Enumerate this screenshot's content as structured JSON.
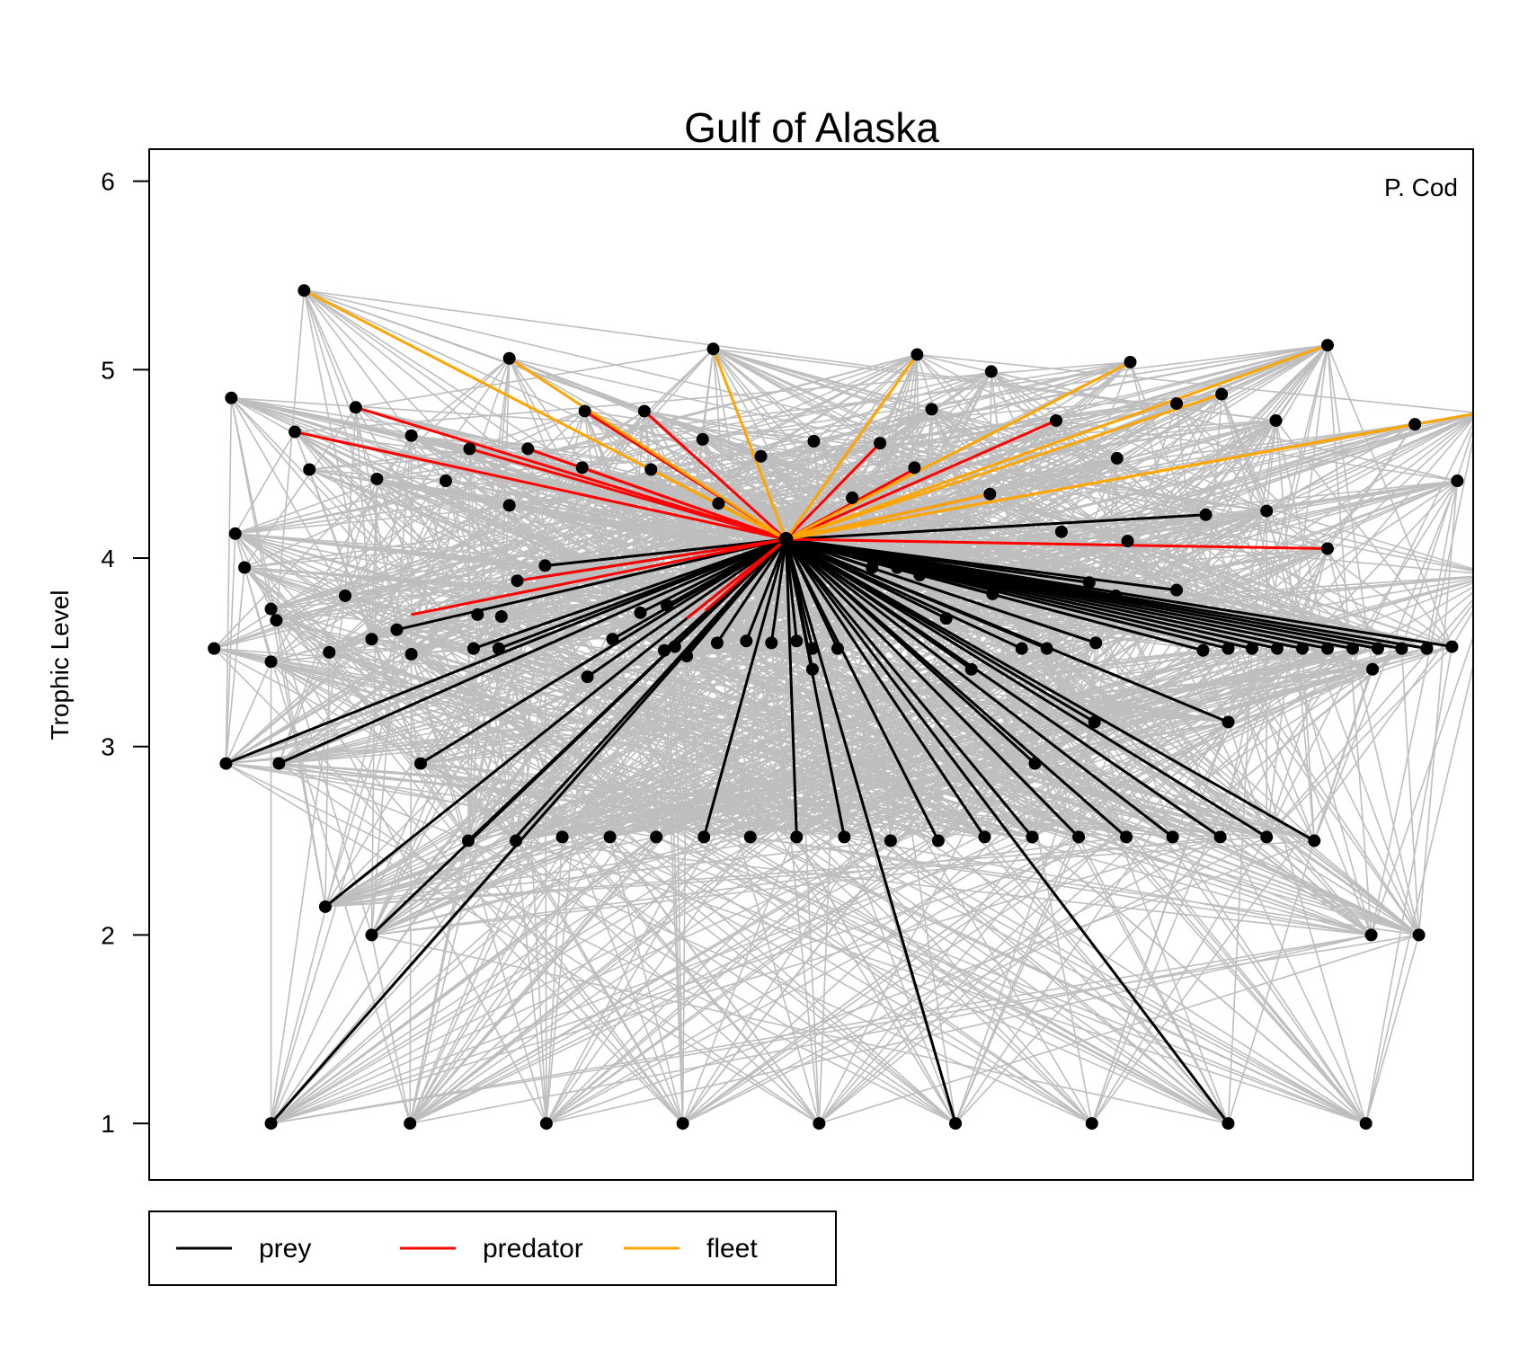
{
  "chart_data": {
    "type": "scatter",
    "title": "Gulf of Alaska",
    "ylabel": "Trophic Level",
    "xlabel": "",
    "annotation": "P. Cod",
    "ylim": [
      0.7,
      6.17
    ],
    "xlim": [
      0,
      100
    ],
    "yticks": [
      1,
      2,
      3,
      4,
      5,
      6
    ],
    "focus": {
      "name": "P. Cod",
      "x": 48.1,
      "y": 4.1
    },
    "colors": {
      "background_link": "#bebebe",
      "prey": "#000000",
      "predator": "#ff0000",
      "fleet": "#ffa500",
      "node": "#000000"
    },
    "legend": [
      {
        "label": "prey",
        "color": "#000000"
      },
      {
        "label": "predator",
        "color": "#ff0000"
      },
      {
        "label": "fleet",
        "color": "#ffa500"
      }
    ],
    "nodes": [
      [
        11.7,
        5.42
      ],
      [
        27.2,
        5.06
      ],
      [
        42.6,
        5.11
      ],
      [
        58.0,
        5.08
      ],
      [
        63.6,
        4.99
      ],
      [
        74.1,
        5.04
      ],
      [
        89.0,
        5.13
      ],
      [
        6.2,
        4.85
      ],
      [
        15.6,
        4.8
      ],
      [
        32.9,
        4.78
      ],
      [
        37.4,
        4.78
      ],
      [
        59.1,
        4.79
      ],
      [
        77.6,
        4.82
      ],
      [
        81.0,
        4.87
      ],
      [
        11.0,
        4.67
      ],
      [
        19.8,
        4.65
      ],
      [
        24.2,
        4.58
      ],
      [
        28.6,
        4.58
      ],
      [
        41.8,
        4.63
      ],
      [
        50.2,
        4.62
      ],
      [
        55.2,
        4.61
      ],
      [
        68.5,
        4.73
      ],
      [
        85.1,
        4.73
      ],
      [
        95.6,
        4.71
      ],
      [
        100.4,
        4.77
      ],
      [
        12.1,
        4.47
      ],
      [
        17.2,
        4.42
      ],
      [
        22.4,
        4.41
      ],
      [
        32.7,
        4.48
      ],
      [
        37.9,
        4.47
      ],
      [
        46.2,
        4.54
      ],
      [
        57.8,
        4.48
      ],
      [
        73.1,
        4.53
      ],
      [
        27.2,
        4.28
      ],
      [
        43.0,
        4.29
      ],
      [
        53.1,
        4.32
      ],
      [
        63.5,
        4.34
      ],
      [
        79.8,
        4.23
      ],
      [
        84.4,
        4.25
      ],
      [
        98.8,
        4.41
      ],
      [
        6.5,
        4.13
      ],
      [
        68.9,
        4.14
      ],
      [
        73.9,
        4.09
      ],
      [
        89.0,
        4.05
      ],
      [
        7.2,
        3.95
      ],
      [
        29.9,
        3.96
      ],
      [
        27.8,
        3.88
      ],
      [
        54.6,
        3.95
      ],
      [
        56.5,
        3.95
      ],
      [
        58.2,
        3.91
      ],
      [
        71.0,
        3.87
      ],
      [
        101.6,
        3.91
      ],
      [
        9.2,
        3.73
      ],
      [
        14.8,
        3.8
      ],
      [
        24.8,
        3.7
      ],
      [
        26.6,
        3.69
      ],
      [
        37.1,
        3.71
      ],
      [
        39.1,
        3.75
      ],
      [
        63.7,
        3.81
      ],
      [
        73.0,
        3.8
      ],
      [
        77.6,
        3.83
      ],
      [
        9.6,
        3.67
      ],
      [
        13.6,
        3.5
      ],
      [
        16.8,
        3.57
      ],
      [
        18.7,
        3.62
      ],
      [
        19.8,
        3.49
      ],
      [
        24.5,
        3.52
      ],
      [
        26.4,
        3.52
      ],
      [
        35.0,
        3.57
      ],
      [
        38.9,
        3.51
      ],
      [
        39.7,
        3.53
      ],
      [
        40.6,
        3.48
      ],
      [
        42.9,
        3.55
      ],
      [
        45.1,
        3.56
      ],
      [
        47.0,
        3.55
      ],
      [
        48.9,
        3.56
      ],
      [
        50.1,
        3.52
      ],
      [
        50.1,
        3.41
      ],
      [
        52.0,
        3.52
      ],
      [
        60.2,
        3.68
      ],
      [
        62.1,
        3.41
      ],
      [
        65.9,
        3.52
      ],
      [
        67.8,
        3.52
      ],
      [
        71.5,
        3.55
      ],
      [
        79.6,
        3.51
      ],
      [
        81.5,
        3.52
      ],
      [
        83.3,
        3.52
      ],
      [
        85.2,
        3.52
      ],
      [
        87.1,
        3.52
      ],
      [
        89.0,
        3.52
      ],
      [
        90.9,
        3.52
      ],
      [
        92.8,
        3.52
      ],
      [
        94.6,
        3.52
      ],
      [
        96.5,
        3.52
      ],
      [
        98.4,
        3.53
      ],
      [
        4.9,
        3.52
      ],
      [
        9.2,
        3.45
      ],
      [
        33.1,
        3.37
      ],
      [
        92.4,
        3.41
      ],
      [
        71.4,
        3.13
      ],
      [
        81.5,
        3.13
      ],
      [
        5.8,
        2.91
      ],
      [
        9.8,
        2.91
      ],
      [
        20.5,
        2.91
      ],
      [
        66.9,
        2.91
      ],
      [
        24.1,
        2.5
      ],
      [
        27.7,
        2.5
      ],
      [
        31.2,
        2.52
      ],
      [
        34.8,
        2.52
      ],
      [
        38.3,
        2.52
      ],
      [
        41.9,
        2.52
      ],
      [
        45.4,
        2.52
      ],
      [
        48.9,
        2.52
      ],
      [
        52.5,
        2.52
      ],
      [
        56.0,
        2.5
      ],
      [
        59.6,
        2.5
      ],
      [
        63.1,
        2.52
      ],
      [
        66.7,
        2.52
      ],
      [
        70.2,
        2.52
      ],
      [
        73.8,
        2.52
      ],
      [
        77.3,
        2.52
      ],
      [
        80.9,
        2.52
      ],
      [
        84.4,
        2.52
      ],
      [
        88.0,
        2.5
      ],
      [
        13.3,
        2.15
      ],
      [
        16.8,
        2.0
      ],
      [
        92.3,
        2.0
      ],
      [
        95.9,
        2.0
      ],
      [
        9.2,
        1.0
      ],
      [
        19.7,
        1.0
      ],
      [
        30.0,
        1.0
      ],
      [
        40.3,
        1.0
      ],
      [
        50.6,
        1.0
      ],
      [
        60.9,
        1.0
      ],
      [
        71.2,
        1.0
      ],
      [
        81.5,
        1.0
      ],
      [
        91.9,
        1.0
      ]
    ],
    "prey": [
      [
        30.0,
        3.96
      ],
      [
        27.8,
        3.88
      ],
      [
        18.7,
        3.62
      ],
      [
        24.5,
        3.52
      ],
      [
        26.4,
        3.52
      ],
      [
        35.0,
        3.57
      ],
      [
        37.1,
        3.71
      ],
      [
        39.1,
        3.75
      ],
      [
        38.9,
        3.51
      ],
      [
        39.7,
        3.53
      ],
      [
        40.6,
        3.48
      ],
      [
        42.9,
        3.55
      ],
      [
        45.1,
        3.56
      ],
      [
        47.0,
        3.55
      ],
      [
        48.9,
        3.56
      ],
      [
        50.1,
        3.52
      ],
      [
        50.1,
        3.41
      ],
      [
        52.0,
        3.52
      ],
      [
        54.6,
        3.95
      ],
      [
        56.5,
        3.95
      ],
      [
        58.2,
        3.91
      ],
      [
        60.2,
        3.68
      ],
      [
        62.1,
        3.41
      ],
      [
        63.7,
        3.81
      ],
      [
        65.9,
        3.52
      ],
      [
        67.8,
        3.52
      ],
      [
        71.0,
        3.87
      ],
      [
        71.5,
        3.55
      ],
      [
        73.0,
        3.8
      ],
      [
        77.6,
        3.83
      ],
      [
        79.6,
        3.51
      ],
      [
        81.5,
        3.52
      ],
      [
        83.3,
        3.52
      ],
      [
        85.2,
        3.52
      ],
      [
        87.1,
        3.52
      ],
      [
        89.0,
        3.52
      ],
      [
        90.9,
        3.52
      ],
      [
        92.8,
        3.52
      ],
      [
        94.6,
        3.52
      ],
      [
        96.5,
        3.52
      ],
      [
        98.4,
        3.53
      ],
      [
        79.8,
        4.23
      ],
      [
        33.1,
        3.37
      ],
      [
        71.4,
        3.13
      ],
      [
        81.5,
        3.13
      ],
      [
        5.8,
        2.91
      ],
      [
        9.8,
        2.91
      ],
      [
        20.5,
        2.91
      ],
      [
        66.9,
        2.91
      ],
      [
        24.1,
        2.5
      ],
      [
        27.7,
        2.52
      ],
      [
        41.9,
        2.52
      ],
      [
        48.9,
        2.52
      ],
      [
        52.5,
        2.52
      ],
      [
        59.6,
        2.5
      ],
      [
        63.1,
        2.52
      ],
      [
        66.7,
        2.52
      ],
      [
        70.2,
        2.52
      ],
      [
        73.8,
        2.52
      ],
      [
        77.3,
        2.52
      ],
      [
        80.9,
        2.52
      ],
      [
        84.4,
        2.52
      ],
      [
        88.0,
        2.5
      ],
      [
        13.3,
        2.15
      ],
      [
        16.8,
        2.0
      ],
      [
        9.2,
        1.0
      ],
      [
        60.9,
        1.0
      ],
      [
        81.5,
        1.0
      ]
    ],
    "predator": [
      [
        15.6,
        4.8
      ],
      [
        11.0,
        4.67
      ],
      [
        24.2,
        4.58
      ],
      [
        28.6,
        4.58
      ],
      [
        32.7,
        4.48
      ],
      [
        37.4,
        4.78
      ],
      [
        32.9,
        4.78
      ],
      [
        55.2,
        4.61
      ],
      [
        58.0,
        4.48
      ],
      [
        68.5,
        4.73
      ],
      [
        63.5,
        4.34
      ],
      [
        89.0,
        4.05
      ],
      [
        19.8,
        3.7
      ],
      [
        27.8,
        3.88
      ],
      [
        40.6,
        3.68
      ],
      [
        42.0,
        3.72
      ]
    ],
    "fleet": [
      [
        11.7,
        5.42
      ],
      [
        27.2,
        5.06
      ],
      [
        42.6,
        5.11
      ],
      [
        58.0,
        5.08
      ],
      [
        74.1,
        5.04
      ],
      [
        89.0,
        5.13
      ],
      [
        81.0,
        4.87
      ],
      [
        95.6,
        4.71
      ],
      [
        100.4,
        4.77
      ],
      [
        37.9,
        4.47
      ],
      [
        43.0,
        4.29
      ],
      [
        63.5,
        4.34
      ]
    ]
  }
}
